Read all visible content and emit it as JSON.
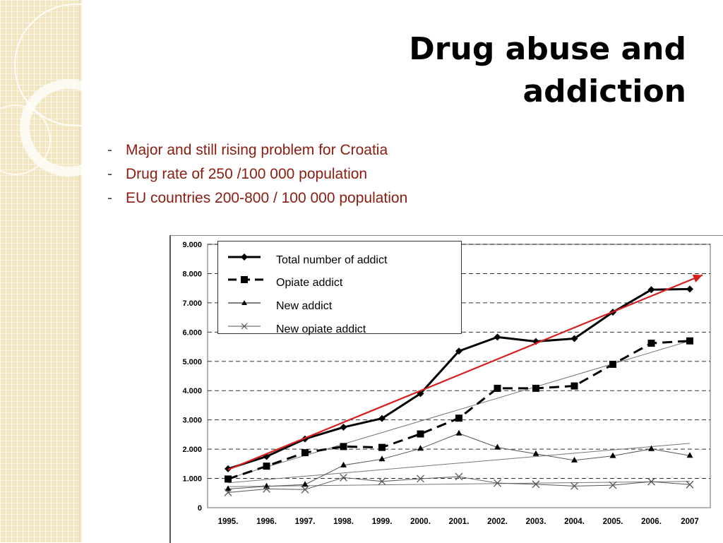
{
  "slide": {
    "title_line1": "Drug abuse and",
    "title_line2": "addiction",
    "bullets": [
      {
        "dash": "-",
        "text": "Major and still rising problem for Croatia"
      },
      {
        "dash": "-",
        "text": "Drug rate of 250 /100 000 population"
      },
      {
        "dash": "-",
        "text": "EU countries 200-800 / 100 000 population"
      }
    ],
    "colors": {
      "bullet_text": "#8b1c10",
      "trend_arrow": "#d42020",
      "band": "#f2e6c2"
    }
  },
  "chart_data": {
    "type": "line",
    "categories": [
      "1995.",
      "1996.",
      "1997.",
      "1998.",
      "1999.",
      "2000.",
      "2001.",
      "2002.",
      "2003.",
      "2004.",
      "2005.",
      "2006.",
      "2007"
    ],
    "y_ticks": [
      "0",
      "1.000",
      "2.000",
      "3.000",
      "4.000",
      "5.000",
      "6.000",
      "7.000",
      "8.000",
      "9.000"
    ],
    "ylim": [
      0,
      9000
    ],
    "grid": "horizontal dashed",
    "legend_position": "top-left",
    "series": [
      {
        "name": "Total number of addict",
        "marker": "diamond",
        "style": "solid-thick",
        "values": [
          1330,
          1750,
          2350,
          2750,
          3050,
          3900,
          5350,
          5830,
          5680,
          5780,
          6680,
          7450,
          7470
        ]
      },
      {
        "name": "Opiate addict",
        "marker": "square",
        "style": "dashed-thick",
        "values": [
          980,
          1420,
          1880,
          2090,
          2060,
          2520,
          3060,
          4080,
          4080,
          4160,
          4900,
          5620,
          5700
        ]
      },
      {
        "name": "New addict",
        "marker": "triangle",
        "style": "thin",
        "values": [
          640,
          730,
          790,
          1450,
          1660,
          2020,
          2540,
          2060,
          1840,
          1620,
          1770,
          2010,
          1780
        ]
      },
      {
        "name": "New opiate addict",
        "marker": "x",
        "style": "thin",
        "values": [
          520,
          640,
          620,
          1030,
          900,
          990,
          1060,
          840,
          800,
          740,
          770,
          890,
          790
        ]
      }
    ],
    "unlabeled_trendlines": [
      {
        "color": "gray",
        "from": [
          0,
          1000
        ],
        "to": [
          12,
          5700
        ]
      },
      {
        "color": "gray",
        "from": [
          0,
          850
        ],
        "to": [
          12,
          2200
        ]
      },
      {
        "color": "gray",
        "from": [
          0,
          720
        ],
        "to": [
          12,
          900
        ]
      }
    ],
    "trend_arrow": {
      "color": "red",
      "from": [
        0,
        1300
      ],
      "to": [
        12,
        7950
      ]
    }
  }
}
